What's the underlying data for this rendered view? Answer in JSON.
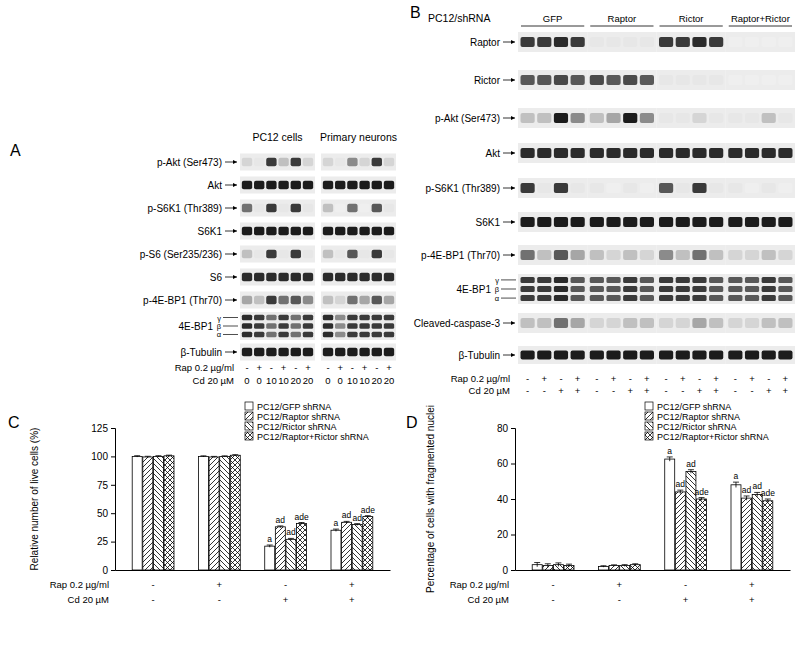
{
  "blots": [
    {
      "panel": "A",
      "headers": [
        "PC12 cells",
        "Primary neurons"
      ],
      "rows": [
        {
          "label": "p-Akt (Ser473)",
          "intensity": [
            0.2,
            0.1,
            0.8,
            0.3,
            0.8,
            0.2,
            0.2,
            0.1,
            0.5,
            0.2,
            0.8,
            0.2
          ]
        },
        {
          "label": "Akt",
          "intensity": [
            0.9,
            0.9,
            0.9,
            0.9,
            0.9,
            0.9,
            0.9,
            0.9,
            0.9,
            0.9,
            0.9,
            0.9
          ]
        },
        {
          "label": "p-S6K1 (Thr389)",
          "intensity": [
            0.6,
            0.1,
            0.8,
            0.1,
            0.8,
            0.1,
            0.3,
            0.05,
            0.6,
            0.05,
            0.7,
            0.1
          ]
        },
        {
          "label": "S6K1",
          "intensity": [
            0.9,
            0.9,
            0.9,
            0.9,
            0.9,
            0.9,
            0.9,
            0.9,
            0.9,
            0.9,
            0.9,
            0.9
          ]
        },
        {
          "label": "p-S6 (Ser235/236)",
          "intensity": [
            0.3,
            0.1,
            0.8,
            0.1,
            0.8,
            0.1,
            0.3,
            0.1,
            0.7,
            0.1,
            0.8,
            0.1
          ]
        },
        {
          "label": "S6",
          "intensity": [
            0.85,
            0.85,
            0.85,
            0.85,
            0.85,
            0.85,
            0.85,
            0.85,
            0.85,
            0.85,
            0.85,
            0.85
          ]
        },
        {
          "label": "p-4E-BP1 (Thr70)",
          "intensity": [
            0.4,
            0.3,
            0.8,
            0.6,
            0.7,
            0.5,
            0.3,
            0.2,
            0.6,
            0.4,
            0.7,
            0.4
          ]
        },
        {
          "label": "4E-BP1",
          "isoforms": [
            "γ",
            "β",
            "α"
          ],
          "intensity": [
            0.85,
            0.8,
            0.6,
            0.8,
            0.6,
            0.8,
            0.85,
            0.5,
            0.8,
            0.8,
            0.8,
            0.8
          ]
        },
        {
          "label": "β-Tubulin",
          "intensity": [
            0.9,
            0.9,
            0.9,
            0.9,
            0.9,
            0.9,
            0.9,
            0.9,
            0.9,
            0.9,
            0.9,
            0.9
          ]
        }
      ],
      "conditions": [
        {
          "label": "Rap 0.2 µg/ml",
          "values": [
            "-",
            "+",
            "-",
            "+",
            "-",
            "+",
            "-",
            "+",
            "-",
            "+",
            "-",
            "+"
          ]
        },
        {
          "label": "Cd 20 µM",
          "values": [
            "0",
            "0",
            "10",
            "10",
            "20",
            "20",
            "0",
            "0",
            "10",
            "10",
            "20",
            "20"
          ]
        }
      ]
    },
    {
      "panel": "B",
      "title": "PC12/shRNA",
      "headers": [
        "GFP",
        "Raptor",
        "Rictor",
        "Raptor+Rictor"
      ],
      "rows": [
        {
          "label": "Raptor",
          "intensity": [
            0.8,
            0.8,
            0.85,
            0.8,
            0.1,
            0.1,
            0.1,
            0.1,
            0.8,
            0.8,
            0.85,
            0.8,
            0.05,
            0.05,
            0.05,
            0.05
          ]
        },
        {
          "label": "Rictor",
          "intensity": [
            0.7,
            0.7,
            0.75,
            0.7,
            0.75,
            0.7,
            0.75,
            0.7,
            0.1,
            0.1,
            0.1,
            0.1,
            0.05,
            0.05,
            0.05,
            0.05
          ]
        },
        {
          "label": "p-Akt (Ser473)",
          "intensity": [
            0.3,
            0.3,
            0.9,
            0.5,
            0.3,
            0.4,
            0.9,
            0.5,
            0.1,
            0.1,
            0.2,
            0.1,
            0.1,
            0.1,
            0.3,
            0.1
          ]
        },
        {
          "label": "Akt",
          "intensity": [
            0.85,
            0.85,
            0.85,
            0.85,
            0.85,
            0.85,
            0.85,
            0.85,
            0.85,
            0.85,
            0.85,
            0.85,
            0.85,
            0.85,
            0.85,
            0.85
          ]
        },
        {
          "label": "p-S6K1 (Thr389)",
          "intensity": [
            0.8,
            0.1,
            0.8,
            0.1,
            0.1,
            0.05,
            0.1,
            0.05,
            0.7,
            0.1,
            0.8,
            0.1,
            0.1,
            0.05,
            0.1,
            0.05
          ]
        },
        {
          "label": "S6K1",
          "intensity": [
            0.9,
            0.9,
            0.9,
            0.9,
            0.9,
            0.9,
            0.9,
            0.9,
            0.9,
            0.9,
            0.9,
            0.9,
            0.9,
            0.9,
            0.9,
            0.9
          ]
        },
        {
          "label": "p-4E-BP1 (Thr70)",
          "intensity": [
            0.6,
            0.3,
            0.7,
            0.4,
            0.3,
            0.2,
            0.3,
            0.2,
            0.5,
            0.3,
            0.6,
            0.3,
            0.2,
            0.2,
            0.3,
            0.2
          ]
        },
        {
          "label": "4E-BP1",
          "isoforms": [
            "γ",
            "β",
            "α"
          ],
          "intensity": [
            0.8,
            0.8,
            0.85,
            0.7,
            0.7,
            0.7,
            0.8,
            0.7,
            0.8,
            0.8,
            0.8,
            0.7,
            0.7,
            0.7,
            0.8,
            0.7
          ]
        },
        {
          "label": "Cleaved-caspase-3",
          "intensity": [
            0.3,
            0.3,
            0.6,
            0.4,
            0.2,
            0.2,
            0.3,
            0.3,
            0.2,
            0.2,
            0.4,
            0.3,
            0.2,
            0.2,
            0.3,
            0.3
          ]
        },
        {
          "label": "β-Tubulin",
          "intensity": [
            0.9,
            0.9,
            0.9,
            0.9,
            0.9,
            0.9,
            0.9,
            0.9,
            0.9,
            0.9,
            0.9,
            0.9,
            0.9,
            0.9,
            0.9,
            0.9
          ]
        }
      ],
      "conditions": [
        {
          "label": "Rap 0.2 µg/ml",
          "values": [
            "-",
            "+",
            "-",
            "+",
            "-",
            "+",
            "-",
            "+",
            "-",
            "+",
            "-",
            "+",
            "-",
            "+",
            "-",
            "+"
          ]
        },
        {
          "label": "Cd 20 µM",
          "values": [
            "-",
            "-",
            "+",
            "+",
            "-",
            "-",
            "+",
            "+",
            "-",
            "-",
            "+",
            "+",
            "-",
            "-",
            "+",
            "+"
          ]
        }
      ]
    }
  ],
  "chart_data": [
    {
      "panel": "C",
      "type": "bar",
      "y_label": "Relative number of live cells (%)",
      "categories": [
        null,
        null,
        null,
        null
      ],
      "conditions": [
        {
          "label": "Rap 0.2 µg/ml",
          "values": [
            "-",
            "+",
            "-",
            "+"
          ]
        },
        {
          "label": "Cd 20 µM",
          "values": [
            "-",
            "-",
            "+",
            "+"
          ]
        }
      ],
      "ylim": [
        0,
        125
      ],
      "yticks": [
        0,
        25,
        50,
        75,
        100,
        125
      ],
      "legend": "upper right",
      "series": [
        {
          "name": "PC12/GFP shRNA",
          "color": "#ffffff",
          "values": [
            100,
            100,
            21,
            35
          ],
          "errors": [
            0.6,
            0.5,
            1.0,
            1.0
          ],
          "letters": [
            null,
            null,
            "a",
            "a"
          ]
        },
        {
          "name": "PC12/Raptor shRNA",
          "color": "#000000",
          "values": [
            99.5,
            99.5,
            38,
            42
          ],
          "errors": [
            0.6,
            0.5,
            0.8,
            0.8
          ],
          "letters": [
            null,
            null,
            "ad",
            "ad"
          ]
        },
        {
          "name": "PC12/Rictor shRNA",
          "color": "#000000",
          "values": [
            100,
            100,
            27,
            40
          ],
          "errors": [
            0.6,
            0.5,
            0.8,
            0.8
          ],
          "letters": [
            null,
            null,
            "ad",
            "ad"
          ]
        },
        {
          "name": "PC12/Raptor+Rictor shRNA",
          "color": "#000000",
          "values": [
            100.5,
            101,
            41,
            47
          ],
          "errors": [
            0.6,
            0.5,
            0.8,
            0.8
          ],
          "letters": [
            null,
            null,
            "ade",
            "ade"
          ]
        }
      ]
    },
    {
      "panel": "D",
      "type": "bar",
      "y_label": "Percentage of cells with fragmented nuclei",
      "categories": [
        null,
        null,
        null,
        null
      ],
      "conditions": [
        {
          "label": "Rap 0.2 µg/ml",
          "values": [
            "-",
            "+",
            "-",
            "+"
          ]
        },
        {
          "label": "Cd 20 µM",
          "values": [
            "-",
            "-",
            "+",
            "+"
          ]
        }
      ],
      "ylim": [
        0,
        80
      ],
      "yticks": [
        0,
        20,
        40,
        60,
        80
      ],
      "legend": "upper right",
      "series": [
        {
          "name": "PC12/GFP shRNA",
          "color": "#ffffff",
          "values": [
            3,
            2,
            62.5,
            48
          ],
          "errors": [
            1.2,
            0.4,
            1.2,
            1.5
          ],
          "letters": [
            null,
            null,
            "a",
            "a"
          ]
        },
        {
          "name": "PC12/Raptor shRNA",
          "color": "#000000",
          "values": [
            2.5,
            2.5,
            44,
            40.5
          ],
          "errors": [
            1.0,
            0.4,
            1.0,
            1.2
          ],
          "letters": [
            null,
            null,
            "ad",
            "ad"
          ]
        },
        {
          "name": "PC12/Rictor shRNA",
          "color": "#000000",
          "values": [
            3,
            2.5,
            55.5,
            42.5
          ],
          "errors": [
            1.0,
            0.5,
            1.0,
            1.2
          ],
          "letters": [
            null,
            null,
            "ad",
            "ad"
          ]
        },
        {
          "name": "PC12/Raptor+Rictor shRNA",
          "color": "#000000",
          "values": [
            2.5,
            3,
            40,
            39
          ],
          "errors": [
            0.8,
            0.5,
            0.8,
            1.0
          ],
          "letters": [
            null,
            null,
            "ade",
            "ade"
          ]
        }
      ]
    }
  ]
}
